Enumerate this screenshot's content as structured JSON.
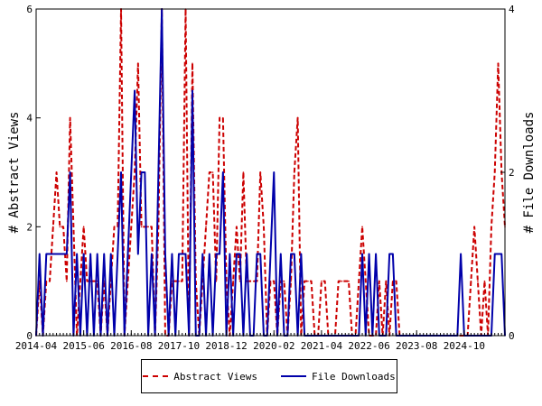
{
  "chart_data": {
    "type": "line",
    "title": "",
    "xlabel": "",
    "ylabel_left": "# Abstract Views",
    "ylabel_right": "# File Downloads",
    "ylim_left": [
      0,
      6
    ],
    "ylim_right": [
      0,
      4
    ],
    "yticks_left": [
      "0",
      "2",
      "4",
      "6"
    ],
    "yticks_right": [
      "0",
      "2",
      "4"
    ],
    "xticks": [
      "2014-04",
      "2015-06",
      "2016-08",
      "2017-10",
      "2018-12",
      "2020-02",
      "2021-04",
      "2022-06",
      "2023-08",
      "2024-10"
    ],
    "x_start": "2014-04",
    "x_end": "2025-10",
    "grid": false,
    "legend_position": "bottom",
    "series": [
      {
        "name": "Abstract Views",
        "axis": "left",
        "color": "#cc0000",
        "style": "dashed",
        "points": [
          [
            "2014-04",
            0
          ],
          [
            "2014-05",
            1
          ],
          [
            "2014-06",
            0
          ],
          [
            "2014-07",
            1
          ],
          [
            "2014-08",
            1
          ],
          [
            "2014-09",
            2
          ],
          [
            "2014-10",
            3
          ],
          [
            "2014-11",
            2
          ],
          [
            "2014-12",
            2
          ],
          [
            "2015-01",
            1
          ],
          [
            "2015-02",
            4
          ],
          [
            "2015-03",
            2
          ],
          [
            "2015-04",
            0
          ],
          [
            "2015-05",
            1
          ],
          [
            "2015-06",
            2
          ],
          [
            "2015-07",
            1
          ],
          [
            "2015-08",
            1
          ],
          [
            "2015-09",
            1
          ],
          [
            "2015-10",
            1
          ],
          [
            "2015-11",
            0
          ],
          [
            "2015-12",
            1
          ],
          [
            "2016-01",
            0
          ],
          [
            "2016-02",
            1
          ],
          [
            "2016-03",
            2
          ],
          [
            "2016-04",
            2
          ],
          [
            "2016-05",
            6
          ],
          [
            "2016-06",
            0
          ],
          [
            "2016-07",
            1
          ],
          [
            "2016-08",
            2
          ],
          [
            "2016-09",
            3
          ],
          [
            "2016-10",
            5
          ],
          [
            "2016-11",
            2
          ],
          [
            "2016-12",
            2
          ],
          [
            "2017-01",
            2
          ],
          [
            "2017-02",
            2
          ],
          [
            "2017-03",
            0
          ],
          [
            "2017-04",
            2
          ],
          [
            "2017-05",
            6
          ],
          [
            "2017-06",
            0
          ],
          [
            "2017-07",
            0
          ],
          [
            "2017-08",
            1
          ],
          [
            "2017-09",
            1
          ],
          [
            "2017-10",
            1
          ],
          [
            "2017-11",
            1
          ],
          [
            "2017-12",
            6
          ],
          [
            "2018-01",
            0
          ],
          [
            "2018-02",
            5
          ],
          [
            "2018-03",
            1
          ],
          [
            "2018-04",
            0
          ],
          [
            "2018-05",
            1
          ],
          [
            "2018-06",
            2
          ],
          [
            "2018-07",
            3
          ],
          [
            "2018-08",
            3
          ],
          [
            "2018-09",
            1
          ],
          [
            "2018-10",
            4
          ],
          [
            "2018-11",
            4
          ],
          [
            "2018-12",
            1
          ],
          [
            "2019-01",
            0
          ],
          [
            "2019-02",
            1
          ],
          [
            "2019-03",
            2
          ],
          [
            "2019-04",
            1
          ],
          [
            "2019-05",
            3
          ],
          [
            "2019-06",
            1
          ],
          [
            "2019-07",
            1
          ],
          [
            "2019-08",
            1
          ],
          [
            "2019-09",
            1
          ],
          [
            "2019-10",
            3
          ],
          [
            "2019-11",
            2
          ],
          [
            "2019-12",
            0
          ],
          [
            "2020-01",
            1
          ],
          [
            "2020-02",
            1
          ],
          [
            "2020-03",
            0
          ],
          [
            "2020-04",
            1
          ],
          [
            "2020-05",
            1
          ],
          [
            "2020-06",
            0
          ],
          [
            "2020-07",
            1
          ],
          [
            "2020-08",
            3
          ],
          [
            "2020-09",
            4
          ],
          [
            "2020-10",
            0
          ],
          [
            "2020-11",
            1
          ],
          [
            "2020-12",
            1
          ],
          [
            "2021-01",
            1
          ],
          [
            "2021-02",
            0
          ],
          [
            "2021-03",
            0
          ],
          [
            "2021-04",
            1
          ],
          [
            "2021-05",
            1
          ],
          [
            "2021-06",
            0
          ],
          [
            "2021-07",
            0
          ],
          [
            "2021-08",
            0
          ],
          [
            "2021-09",
            1
          ],
          [
            "2021-10",
            1
          ],
          [
            "2021-11",
            1
          ],
          [
            "2021-12",
            1
          ],
          [
            "2022-01",
            0
          ],
          [
            "2022-02",
            0
          ],
          [
            "2022-03",
            1
          ],
          [
            "2022-04",
            2
          ],
          [
            "2022-05",
            1
          ],
          [
            "2022-06",
            0
          ],
          [
            "2022-07",
            0
          ],
          [
            "2022-08",
            0
          ],
          [
            "2022-09",
            1
          ],
          [
            "2022-10",
            0
          ],
          [
            "2022-11",
            1
          ],
          [
            "2022-12",
            0
          ],
          [
            "2023-01",
            1
          ],
          [
            "2023-02",
            1
          ],
          [
            "2023-03",
            0
          ],
          [
            "2023-04",
            0
          ],
          [
            "2023-05",
            0
          ],
          [
            "2023-06",
            0
          ],
          [
            "2023-07",
            0
          ],
          [
            "2023-08",
            0
          ],
          [
            "2023-09",
            0
          ],
          [
            "2023-10",
            0
          ],
          [
            "2023-11",
            0
          ],
          [
            "2023-12",
            0
          ],
          [
            "2024-01",
            0
          ],
          [
            "2024-02",
            0
          ],
          [
            "2024-03",
            0
          ],
          [
            "2024-04",
            0
          ],
          [
            "2024-05",
            0
          ],
          [
            "2024-06",
            0
          ],
          [
            "2024-07",
            0
          ],
          [
            "2024-08",
            0
          ],
          [
            "2024-09",
            0
          ],
          [
            "2024-10",
            0
          ],
          [
            "2024-11",
            0
          ],
          [
            "2024-12",
            1
          ],
          [
            "2025-01",
            2
          ],
          [
            "2025-02",
            1
          ],
          [
            "2025-03",
            0
          ],
          [
            "2025-04",
            1
          ],
          [
            "2025-05",
            0
          ],
          [
            "2025-06",
            2
          ],
          [
            "2025-07",
            3
          ],
          [
            "2025-08",
            5
          ],
          [
            "2025-09",
            3
          ],
          [
            "2025-10",
            2
          ]
        ]
      },
      {
        "name": "File Downloads",
        "axis": "right",
        "color": "#0000aa",
        "style": "solid",
        "points": [
          [
            "2014-04",
            0
          ],
          [
            "2014-05",
            1
          ],
          [
            "2014-06",
            0
          ],
          [
            "2014-07",
            1
          ],
          [
            "2014-08",
            1
          ],
          [
            "2014-09",
            1
          ],
          [
            "2014-10",
            1
          ],
          [
            "2014-11",
            1
          ],
          [
            "2014-12",
            1
          ],
          [
            "2015-01",
            1
          ],
          [
            "2015-02",
            2
          ],
          [
            "2015-03",
            0
          ],
          [
            "2015-04",
            1
          ],
          [
            "2015-05",
            0
          ],
          [
            "2015-06",
            1
          ],
          [
            "2015-07",
            0
          ],
          [
            "2015-08",
            1
          ],
          [
            "2015-09",
            0
          ],
          [
            "2015-10",
            1
          ],
          [
            "2015-11",
            0
          ],
          [
            "2015-12",
            1
          ],
          [
            "2016-01",
            0
          ],
          [
            "2016-02",
            1
          ],
          [
            "2016-03",
            0
          ],
          [
            "2016-04",
            1
          ],
          [
            "2016-05",
            2
          ],
          [
            "2016-06",
            0
          ],
          [
            "2016-07",
            1
          ],
          [
            "2016-08",
            2
          ],
          [
            "2016-09",
            3
          ],
          [
            "2016-10",
            1
          ],
          [
            "2016-11",
            2
          ],
          [
            "2016-12",
            2
          ],
          [
            "2017-01",
            0
          ],
          [
            "2017-02",
            1
          ],
          [
            "2017-03",
            0
          ],
          [
            "2017-04",
            2
          ],
          [
            "2017-05",
            4
          ],
          [
            "2017-06",
            1
          ],
          [
            "2017-07",
            0
          ],
          [
            "2017-08",
            1
          ],
          [
            "2017-09",
            0
          ],
          [
            "2017-10",
            1
          ],
          [
            "2017-11",
            1
          ],
          [
            "2017-12",
            1
          ],
          [
            "2018-01",
            0
          ],
          [
            "2018-02",
            3
          ],
          [
            "2018-03",
            0
          ],
          [
            "2018-04",
            0
          ],
          [
            "2018-05",
            1
          ],
          [
            "2018-06",
            0
          ],
          [
            "2018-07",
            1
          ],
          [
            "2018-08",
            0
          ],
          [
            "2018-09",
            1
          ],
          [
            "2018-10",
            1
          ],
          [
            "2018-11",
            2
          ],
          [
            "2018-12",
            0
          ],
          [
            "2019-01",
            1
          ],
          [
            "2019-02",
            0
          ],
          [
            "2019-03",
            1
          ],
          [
            "2019-04",
            1
          ],
          [
            "2019-05",
            0
          ],
          [
            "2019-06",
            1
          ],
          [
            "2019-07",
            0
          ],
          [
            "2019-08",
            0
          ],
          [
            "2019-09",
            1
          ],
          [
            "2019-10",
            1
          ],
          [
            "2019-11",
            0
          ],
          [
            "2019-12",
            0
          ],
          [
            "2020-01",
            1
          ],
          [
            "2020-02",
            2
          ],
          [
            "2020-03",
            0
          ],
          [
            "2020-04",
            1
          ],
          [
            "2020-05",
            0
          ],
          [
            "2020-06",
            0
          ],
          [
            "2020-07",
            1
          ],
          [
            "2020-08",
            1
          ],
          [
            "2020-09",
            0
          ],
          [
            "2020-10",
            1
          ],
          [
            "2020-11",
            0
          ],
          [
            "2020-12",
            0
          ],
          [
            "2021-01",
            0
          ],
          [
            "2021-02",
            0
          ],
          [
            "2021-03",
            0
          ],
          [
            "2021-04",
            0
          ],
          [
            "2021-05",
            0
          ],
          [
            "2021-06",
            0
          ],
          [
            "2021-07",
            0
          ],
          [
            "2021-08",
            0
          ],
          [
            "2021-09",
            0
          ],
          [
            "2021-10",
            0
          ],
          [
            "2021-11",
            0
          ],
          [
            "2021-12",
            0
          ],
          [
            "2022-01",
            0
          ],
          [
            "2022-02",
            0
          ],
          [
            "2022-03",
            0
          ],
          [
            "2022-04",
            1
          ],
          [
            "2022-05",
            0
          ],
          [
            "2022-06",
            1
          ],
          [
            "2022-07",
            0
          ],
          [
            "2022-08",
            1
          ],
          [
            "2022-09",
            0
          ],
          [
            "2022-10",
            0
          ],
          [
            "2022-11",
            0
          ],
          [
            "2022-12",
            1
          ],
          [
            "2023-01",
            1
          ],
          [
            "2023-02",
            0
          ],
          [
            "2023-03",
            0
          ],
          [
            "2023-04",
            0
          ],
          [
            "2023-05",
            0
          ],
          [
            "2023-06",
            0
          ],
          [
            "2023-07",
            0
          ],
          [
            "2023-08",
            0
          ],
          [
            "2023-09",
            0
          ],
          [
            "2023-10",
            0
          ],
          [
            "2023-11",
            0
          ],
          [
            "2023-12",
            0
          ],
          [
            "2024-01",
            0
          ],
          [
            "2024-02",
            0
          ],
          [
            "2024-03",
            0
          ],
          [
            "2024-04",
            0
          ],
          [
            "2024-05",
            0
          ],
          [
            "2024-06",
            0
          ],
          [
            "2024-07",
            0
          ],
          [
            "2024-08",
            0
          ],
          [
            "2024-09",
            1
          ],
          [
            "2024-10",
            0
          ],
          [
            "2024-11",
            0
          ],
          [
            "2024-12",
            0
          ],
          [
            "2025-01",
            0
          ],
          [
            "2025-02",
            0
          ],
          [
            "2025-03",
            0
          ],
          [
            "2025-04",
            0
          ],
          [
            "2025-05",
            0
          ],
          [
            "2025-06",
            0
          ],
          [
            "2025-07",
            1
          ],
          [
            "2025-08",
            1
          ],
          [
            "2025-09",
            1
          ],
          [
            "2025-10",
            0
          ]
        ]
      }
    ]
  }
}
